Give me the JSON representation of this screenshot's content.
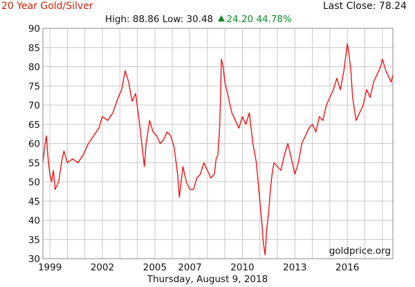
{
  "header": {
    "title": "20 Year Gold/Silver",
    "last_close": "Last Close: 78.24",
    "stats_high_low": "High: 88.86 Low: 30.48",
    "stats_change": "24.20 44.78%"
  },
  "footer": {
    "date": "Thursday, August 9, 2018"
  },
  "colors": {
    "line": "#ee1111",
    "grid": "#c8c8c8",
    "title": "#cc2200",
    "change_up": "#0a8a2a"
  },
  "chart_data": {
    "type": "line",
    "title": "20 Year Gold/Silver",
    "xlabel": "",
    "ylabel": "",
    "ylim": [
      30,
      90
    ],
    "xlim": [
      1998.6,
      2018.6
    ],
    "y_ticks": [
      30,
      35,
      40,
      45,
      50,
      55,
      60,
      65,
      70,
      75,
      80,
      85,
      90
    ],
    "x_ticks": [
      {
        "x": 1999,
        "label": "1999"
      },
      {
        "x": 2002,
        "label": "2002"
      },
      {
        "x": 2005,
        "label": "2005"
      },
      {
        "x": 2007,
        "label": "2007"
      },
      {
        "x": 2010,
        "label": "2010"
      },
      {
        "x": 2013,
        "label": "2013"
      },
      {
        "x": 2016,
        "label": "2016"
      }
    ],
    "grid": true,
    "watermark": "goldprice.org",
    "series": [
      {
        "x": [
          1998.6,
          1998.7,
          1998.8,
          1998.9,
          1999.0,
          1999.1,
          1999.2,
          1999.3,
          1999.5,
          1999.7,
          1999.8,
          2000.0,
          2000.3,
          2000.6,
          2000.9,
          2001.2,
          2001.5,
          2001.8,
          2002.0,
          2002.3,
          2002.6,
          2002.9,
          2003.1,
          2003.3,
          2003.5,
          2003.7,
          2003.9,
          2004.1,
          2004.2,
          2004.4,
          2004.5,
          2004.7,
          2004.9,
          2005.1,
          2005.3,
          2005.5,
          2005.7,
          2005.9,
          2006.1,
          2006.3,
          2006.4,
          2006.5,
          2006.6,
          2006.8,
          2007.0,
          2007.2,
          2007.4,
          2007.6,
          2007.8,
          2007.9,
          2008.0,
          2008.2,
          2008.4,
          2008.5,
          2008.6,
          2008.7,
          2008.75,
          2008.8,
          2008.9,
          2009.0,
          2009.2,
          2009.4,
          2009.6,
          2009.8,
          2010.0,
          2010.2,
          2010.4,
          2010.6,
          2010.8,
          2011.0,
          2011.1,
          2011.2,
          2011.3,
          2011.4,
          2011.5,
          2011.6,
          2011.7,
          2011.8,
          2012.0,
          2012.2,
          2012.4,
          2012.6,
          2012.8,
          2013.0,
          2013.2,
          2013.4,
          2013.6,
          2013.8,
          2014.0,
          2014.2,
          2014.4,
          2014.6,
          2014.8,
          2015.0,
          2015.2,
          2015.4,
          2015.6,
          2015.8,
          2016.0,
          2016.1,
          2016.2,
          2016.3,
          2016.5,
          2016.7,
          2016.9,
          2017.1,
          2017.3,
          2017.5,
          2017.7,
          2017.9,
          2018.0,
          2018.2,
          2018.4,
          2018.5,
          2018.6
        ],
        "y": [
          55,
          59,
          62,
          56,
          52,
          50,
          53,
          48,
          50,
          56,
          58,
          55,
          56,
          55,
          57,
          60,
          62,
          64,
          67,
          66,
          68,
          72,
          74,
          79,
          76,
          71,
          73,
          66,
          62,
          54,
          60,
          66,
          63,
          62,
          60,
          61,
          63,
          62,
          59,
          52,
          46,
          50,
          54,
          50,
          48,
          48,
          51,
          52,
          55,
          54,
          53,
          51,
          52,
          56,
          57,
          64,
          72,
          82,
          80,
          76,
          72,
          68,
          66,
          64,
          67,
          65,
          68,
          60,
          55,
          45,
          40,
          34,
          31,
          38,
          42,
          48,
          52,
          55,
          54,
          53,
          57,
          60,
          56,
          52,
          55,
          60,
          62,
          64,
          65,
          63,
          67,
          66,
          70,
          72,
          74,
          77,
          74,
          79,
          86,
          83,
          79,
          72,
          66,
          68,
          70,
          74,
          72,
          76,
          78,
          80,
          82,
          79,
          77,
          76,
          78
        ]
      }
    ]
  }
}
